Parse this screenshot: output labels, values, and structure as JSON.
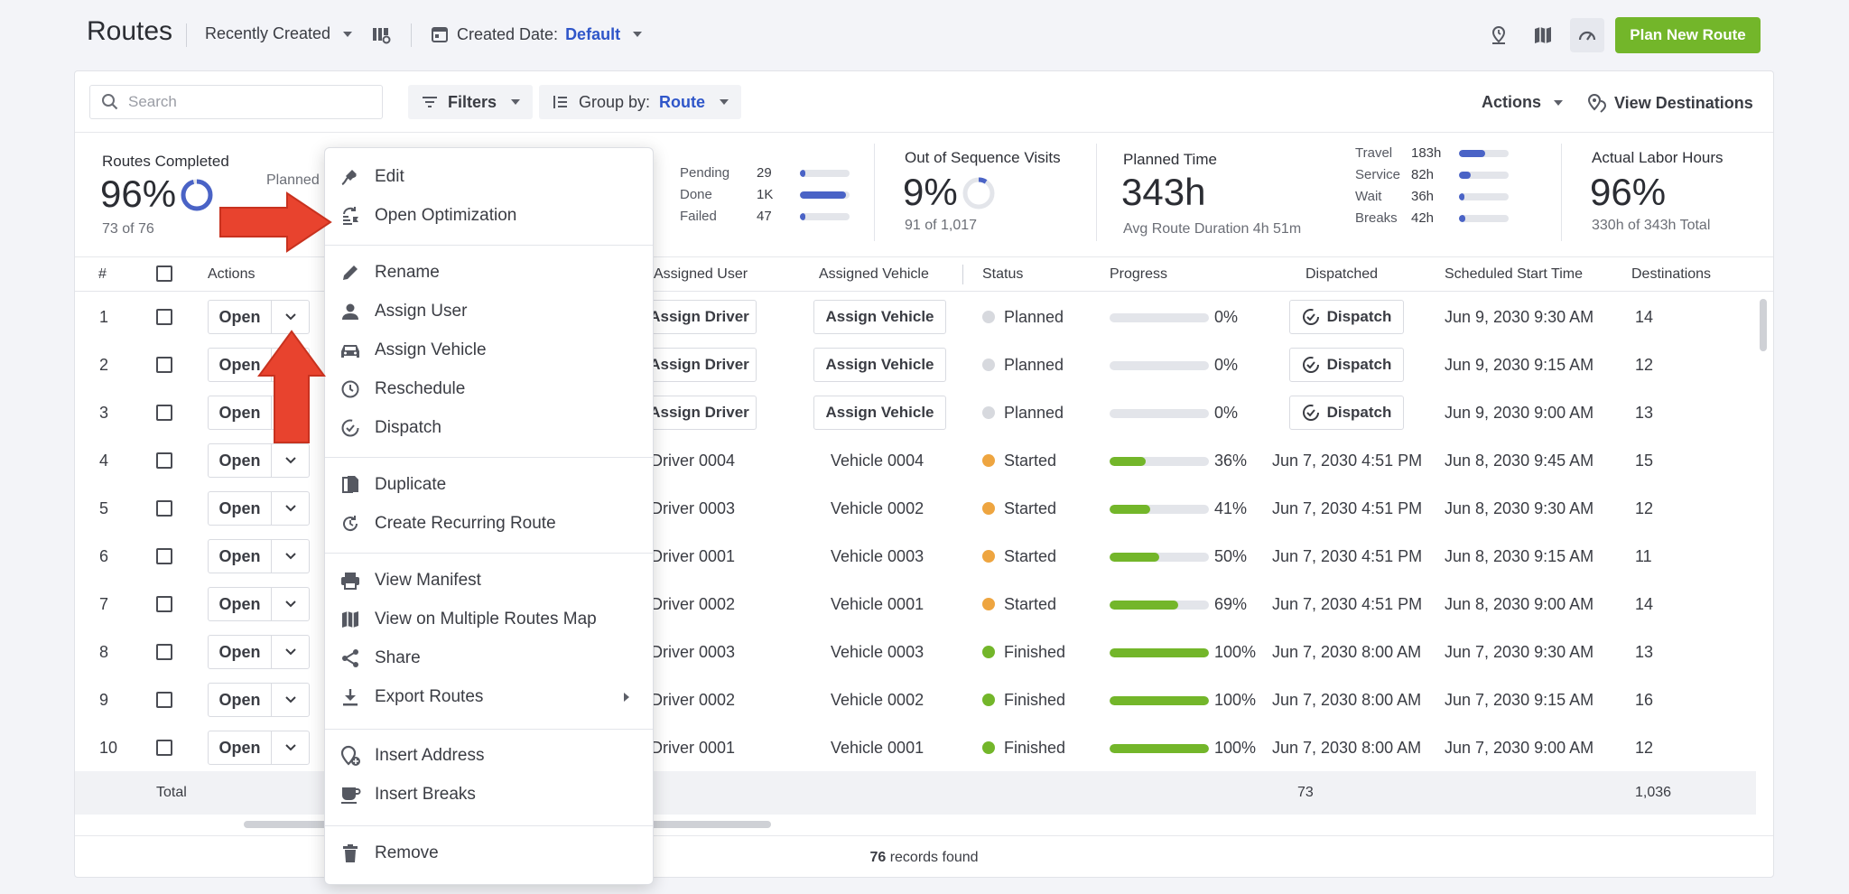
{
  "header": {
    "title": "Routes",
    "sort_label": "Recently Created",
    "date_label": "Created Date:",
    "date_value": "Default",
    "plan_button": "Plan New Route"
  },
  "toolbar": {
    "search_placeholder": "Search",
    "filters_label": "Filters",
    "group_label": "Group by:",
    "group_value": "Route",
    "actions_label": "Actions",
    "view_destinations_label": "View Destinations"
  },
  "stats": {
    "routes_completed": {
      "title": "Routes Completed",
      "value": "96%",
      "sub": "73 of 76",
      "ring_fraction": 0.96,
      "planned_partial": "Planned"
    },
    "statuses": [
      {
        "label": "Pending",
        "value": "29",
        "fraction": 0.1
      },
      {
        "label": "Done",
        "value": "1K",
        "fraction": 0.92
      },
      {
        "label": "Failed",
        "value": "47",
        "fraction": 0.1
      }
    ],
    "out_of_sequence": {
      "title": "Out of Sequence Visits",
      "value": "9%",
      "sub": "91 of 1,017",
      "ring_fraction": 0.09
    },
    "planned_time": {
      "title": "Planned Time",
      "value": "343h",
      "sub": "Avg Route Duration 4h 51m"
    },
    "time_breakdown": [
      {
        "label": "Travel",
        "value": "183h",
        "fraction": 0.53
      },
      {
        "label": "Service",
        "value": "82h",
        "fraction": 0.24
      },
      {
        "label": "Wait",
        "value": "36h",
        "fraction": 0.1
      },
      {
        "label": "Breaks",
        "value": "42h",
        "fraction": 0.12
      }
    ],
    "labor_hours": {
      "title": "Actual Labor Hours",
      "value": "96%",
      "sub": "330h of 343h Total"
    }
  },
  "table": {
    "headers": {
      "num": "#",
      "actions": "Actions",
      "user": "Assigned User",
      "vehicle": "Assigned Vehicle",
      "status": "Status",
      "progress": "Progress",
      "dispatched": "Dispatched",
      "start": "Scheduled Start Time",
      "destinations": "Destinations"
    },
    "open_label": "Open",
    "assign_driver_label": "Assign Driver",
    "assign_vehicle_label": "Assign Vehicle",
    "dispatch_label": "Dispatch",
    "rows": [
      {
        "num": "1",
        "user": "",
        "vehicle": "",
        "status": "Planned",
        "status_color": "#d7d9de",
        "progress": 0,
        "progress_label": "0%",
        "dispatched": "",
        "start": "Jun 9, 2030 9:30 AM",
        "destinations": "14"
      },
      {
        "num": "2",
        "user": "",
        "vehicle": "",
        "status": "Planned",
        "status_color": "#d7d9de",
        "progress": 0,
        "progress_label": "0%",
        "dispatched": "",
        "start": "Jun 9, 2030 9:15 AM",
        "destinations": "12"
      },
      {
        "num": "3",
        "user": "",
        "vehicle": "",
        "status": "Planned",
        "status_color": "#d7d9de",
        "progress": 0,
        "progress_label": "0%",
        "dispatched": "",
        "start": "Jun 9, 2030 9:00 AM",
        "destinations": "13"
      },
      {
        "num": "4",
        "user": "Driver 0004",
        "vehicle": "Vehicle 0004",
        "status": "Started",
        "status_color": "#eea540",
        "progress": 36,
        "progress_label": "36%",
        "dispatched": "Jun 7, 2030 4:51 PM",
        "start": "Jun 8, 2030 9:45 AM",
        "destinations": "15"
      },
      {
        "num": "5",
        "user": "Driver 0003",
        "vehicle": "Vehicle 0002",
        "status": "Started",
        "status_color": "#eea540",
        "progress": 41,
        "progress_label": "41%",
        "dispatched": "Jun 7, 2030 4:51 PM",
        "start": "Jun 8, 2030 9:30 AM",
        "destinations": "12"
      },
      {
        "num": "6",
        "user": "Driver 0001",
        "vehicle": "Vehicle 0003",
        "status": "Started",
        "status_color": "#eea540",
        "progress": 50,
        "progress_label": "50%",
        "dispatched": "Jun 7, 2030 4:51 PM",
        "start": "Jun 8, 2030 9:15 AM",
        "destinations": "11"
      },
      {
        "num": "7",
        "user": "Driver 0002",
        "vehicle": "Vehicle 0001",
        "status": "Started",
        "status_color": "#eea540",
        "progress": 69,
        "progress_label": "69%",
        "dispatched": "Jun 7, 2030 4:51 PM",
        "start": "Jun 8, 2030 9:00 AM",
        "destinations": "14"
      },
      {
        "num": "8",
        "user": "Driver 0003",
        "vehicle": "Vehicle 0003",
        "status": "Finished",
        "status_color": "#73b62a",
        "progress": 100,
        "progress_label": "100%",
        "dispatched": "Jun 7, 2030 8:00 AM",
        "start": "Jun 7, 2030 9:30 AM",
        "destinations": "13"
      },
      {
        "num": "9",
        "user": "Driver 0002",
        "vehicle": "Vehicle 0002",
        "status": "Finished",
        "status_color": "#73b62a",
        "progress": 100,
        "progress_label": "100%",
        "dispatched": "Jun 7, 2030 8:00 AM",
        "start": "Jun 7, 2030 9:15 AM",
        "destinations": "16"
      },
      {
        "num": "10",
        "user": "Driver 0001",
        "vehicle": "Vehicle 0001",
        "status": "Finished",
        "status_color": "#73b62a",
        "progress": 100,
        "progress_label": "100%",
        "dispatched": "Jun 7, 2030 8:00 AM",
        "start": "Jun 7, 2030 9:00 AM",
        "destinations": "12"
      }
    ],
    "total": {
      "label": "Total",
      "dispatched": "73",
      "destinations": "1,036"
    },
    "footer": {
      "count": "76",
      "suffix": " records found"
    }
  },
  "context_menu": {
    "items": [
      {
        "label": "Edit",
        "icon": "edit-route-icon"
      },
      {
        "label": "Open Optimization",
        "icon": "optimization-icon"
      },
      {
        "label": "Rename",
        "icon": "pencil-icon"
      },
      {
        "label": "Assign User",
        "icon": "user-icon"
      },
      {
        "label": "Assign Vehicle",
        "icon": "car-icon"
      },
      {
        "label": "Reschedule",
        "icon": "clock-icon"
      },
      {
        "label": "Dispatch",
        "icon": "dispatch-check-icon"
      },
      {
        "label": "Duplicate",
        "icon": "duplicate-icon"
      },
      {
        "label": "Create Recurring Route",
        "icon": "recurring-icon"
      },
      {
        "label": "View Manifest",
        "icon": "printer-icon"
      },
      {
        "label": "View on Multiple Routes Map",
        "icon": "map-icon"
      },
      {
        "label": "Share",
        "icon": "share-icon"
      },
      {
        "label": "Export Routes",
        "icon": "download-icon"
      },
      {
        "label": "Insert Address",
        "icon": "add-location-icon"
      },
      {
        "label": "Insert Breaks",
        "icon": "coffee-icon"
      },
      {
        "label": "Remove",
        "icon": "trash-icon"
      }
    ]
  },
  "colors": {
    "accent_blue": "#2f56c9",
    "brand_green": "#73b62a",
    "started_orange": "#eea540",
    "arrow_red": "#e8432e"
  }
}
